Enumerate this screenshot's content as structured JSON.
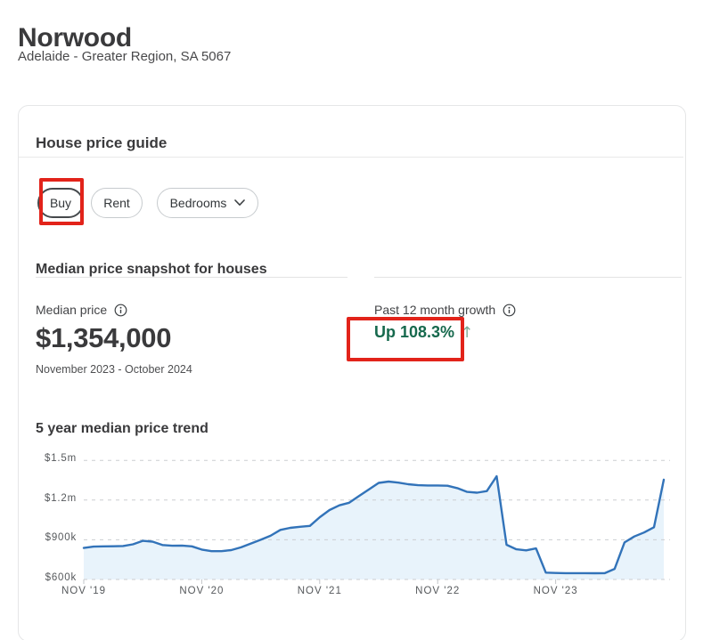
{
  "page": {
    "title": "Norwood",
    "subtitle": "Adelaide - Greater Region, SA 5067"
  },
  "card": {
    "title": "House price guide",
    "filters": {
      "buy": "Buy",
      "rent": "Rent",
      "bedrooms": "Bedrooms"
    },
    "snapshot": {
      "heading": "Median price snapshot for houses",
      "median_price_label": "Median price",
      "median_price": "$1,354,000",
      "period": "November 2023 - October 2024",
      "growth_label": "Past 12 month growth",
      "growth_value": "Up 108.3%",
      "growth_direction": "up",
      "growth_arrow_glyph": "↑"
    },
    "trend_heading": "5 year median price trend"
  },
  "annotations": {
    "highlight_color": "#e2231a",
    "highlighted_elements": [
      "buy-filter-button",
      "growth-value"
    ]
  },
  "colors": {
    "heading_text": "#3a3a3c",
    "growth_green": "#16694d",
    "growth_arrow_green": "#7dab97",
    "chart_line_blue": "#3273b9",
    "chart_fill_blue": "#e8f3fb",
    "annotation_red": "#e2231a",
    "card_border": "#e5e6e7"
  },
  "chart_data": {
    "type": "area",
    "title": "5 year median price trend",
    "unit": "AUD thousands",
    "ylim": [
      600,
      1500
    ],
    "grid": "dashed horizontal gridlines",
    "legend": "none",
    "line_color": "#3273b9",
    "fill_color": "#e8f3fb",
    "grid_color": "#cbced1",
    "tick_color": "#c2c5c8",
    "y_ticks": [
      "$600k",
      "$900k",
      "$1.2m",
      "$1.5m"
    ],
    "y_tick_values": [
      600,
      900,
      1200,
      1500
    ],
    "x_ticks": [
      "NOV '19",
      "NOV '20",
      "NOV '21",
      "NOV '22",
      "NOV '23"
    ],
    "x_tick_month_indices": [
      0,
      12,
      24,
      36,
      48
    ],
    "x": [
      "2019-11",
      "2019-12",
      "2020-01",
      "2020-02",
      "2020-03",
      "2020-04",
      "2020-05",
      "2020-06",
      "2020-07",
      "2020-08",
      "2020-09",
      "2020-10",
      "2020-11",
      "2020-12",
      "2021-01",
      "2021-02",
      "2021-03",
      "2021-04",
      "2021-05",
      "2021-06",
      "2021-07",
      "2021-08",
      "2021-09",
      "2021-10",
      "2021-11",
      "2021-12",
      "2022-01",
      "2022-02",
      "2022-03",
      "2022-04",
      "2022-05",
      "2022-06",
      "2022-07",
      "2022-08",
      "2022-09",
      "2022-10",
      "2022-11",
      "2022-12",
      "2023-01",
      "2023-02",
      "2023-03",
      "2023-04",
      "2023-05",
      "2023-06",
      "2023-07",
      "2023-08",
      "2023-09",
      "2023-10",
      "2023-11",
      "2023-12",
      "2024-01",
      "2024-02",
      "2024-03",
      "2024-04",
      "2024-05",
      "2024-06",
      "2024-07",
      "2024-08",
      "2024-09",
      "2024-10"
    ],
    "values": [
      838,
      848,
      850,
      851,
      853,
      866,
      892,
      886,
      860,
      855,
      856,
      850,
      826,
      814,
      814,
      822,
      843,
      872,
      900,
      930,
      975,
      990,
      998,
      1005,
      1070,
      1125,
      1160,
      1180,
      1230,
      1280,
      1330,
      1340,
      1332,
      1320,
      1312,
      1310,
      1310,
      1308,
      1290,
      1262,
      1256,
      1268,
      1380,
      862,
      828,
      820,
      835,
      652,
      649,
      648,
      648,
      648,
      647,
      648,
      680,
      880,
      925,
      955,
      995,
      1354
    ]
  }
}
